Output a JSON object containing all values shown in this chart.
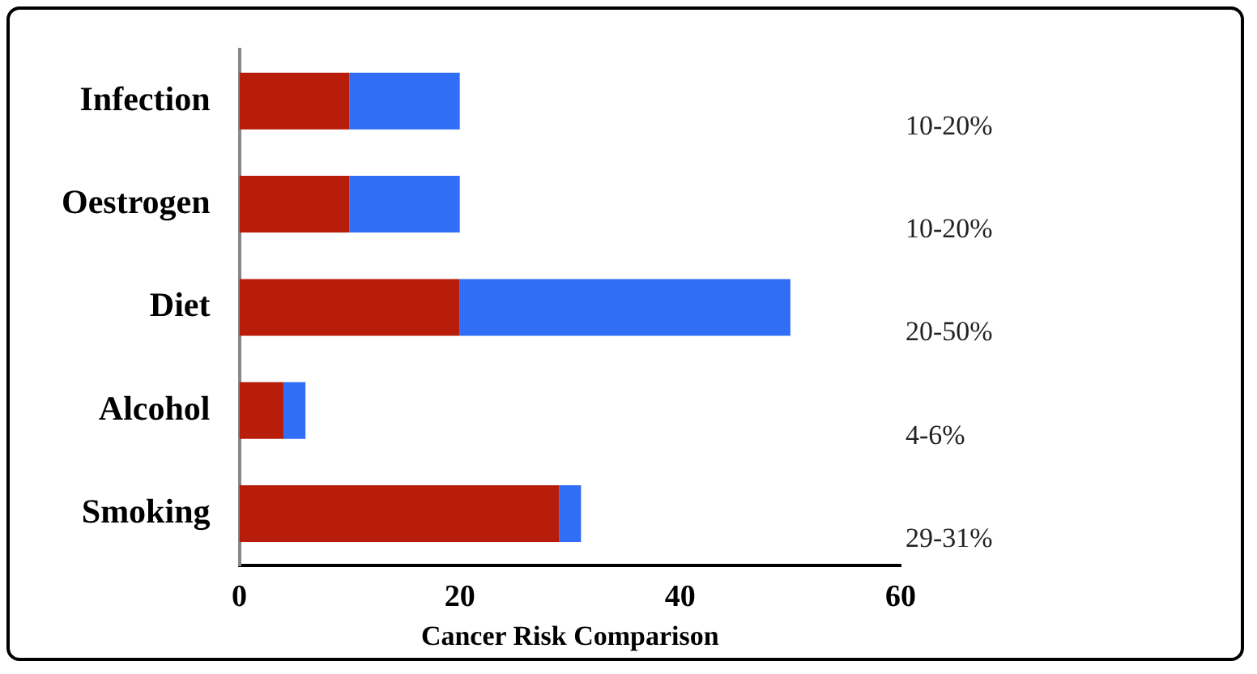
{
  "chart_data": {
    "type": "bar",
    "orientation": "horizontal",
    "stacked": true,
    "xlabel": "Cancer Risk Comparison",
    "categories": [
      "Infection",
      "Oestrogen",
      "Diet",
      "Alcohol",
      "Smoking"
    ],
    "series": [
      {
        "color": "#b81c0a",
        "values": [
          10,
          10,
          20,
          4,
          29
        ]
      },
      {
        "color": "#2f6ef5",
        "values": [
          10,
          10,
          30,
          2,
          2
        ]
      }
    ],
    "annotations": [
      "10-20%",
      "10-20%",
      "20-50%",
      "4-6%",
      "29-31%"
    ],
    "xlim": [
      0,
      60
    ],
    "xticks": [
      0,
      20,
      40,
      60
    ],
    "grid": false,
    "legend": false
  }
}
